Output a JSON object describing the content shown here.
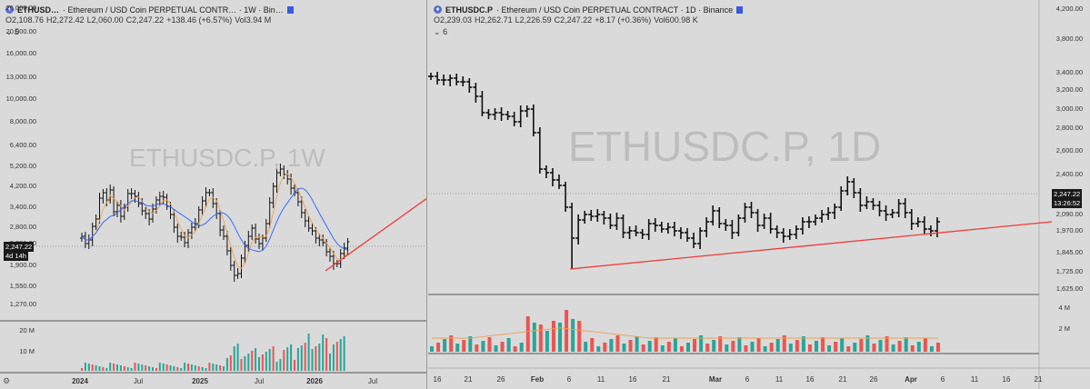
{
  "left": {
    "symbol": "ETHUSD…",
    "title": "· Ethereum / USD Coin PERPETUAL CONTR… · 1W · Bin…",
    "ohlc": {
      "o": "O2,108.76",
      "h": "H2,272.42",
      "l": "L2,060.00",
      "c": "C2,247.22",
      "chg": "+138.46 (+6.57%)",
      "vol": "Vol3.94 M"
    },
    "indicator_count": "5",
    "watermark": "ETHUSDC.P, 1W",
    "price_ticks": [
      "26,000.00",
      "20,000.00",
      "16,000.00",
      "13,000.00",
      "10,000.00",
      "8,000.00",
      "6,400.00",
      "5,200.00",
      "4,200.00",
      "3,400.00",
      "2,800.00",
      "2,350.00",
      "1,900.00",
      "1,550.00",
      "1,270.00"
    ],
    "price_tag": "2,247.22",
    "countdown_tag": "4d 14h",
    "volume_ticks": [
      "20 M",
      "10 M"
    ],
    "time_ticks": [
      {
        "label": "2024",
        "bold": true
      },
      {
        "label": "Jul",
        "bold": false
      },
      {
        "label": "2025",
        "bold": true
      },
      {
        "label": "Jul",
        "bold": false
      },
      {
        "label": "2026",
        "bold": true
      },
      {
        "label": "Jul",
        "bold": false
      }
    ]
  },
  "right": {
    "symbol": "ETHUSDC.P",
    "title": "· Ethereum / USD Coin PERPETUAL CONTRACT · 1D · Binance",
    "ohlc": {
      "o": "O2,239.03",
      "h": "H2,262.71",
      "l": "L2,226.59",
      "c": "C2,247.22",
      "chg": "+8.17 (+0.36%)",
      "vol": "Vol600.98 K"
    },
    "indicator_count": "6",
    "watermark": "ETHUSDC.P, 1D",
    "price_ticks": [
      "4,200.00",
      "3,800.00",
      "3,400.00",
      "3,200.00",
      "3,000.00",
      "2,800.00",
      "2,600.00",
      "2,400.00",
      "2,090.00",
      "1,970.00",
      "1,845.00",
      "1,725.00",
      "1,625.00"
    ],
    "price_tag": "2,247.22",
    "countdown_tag": "13:26:52",
    "volume_ticks": [
      "4 M",
      "2 M"
    ],
    "time_ticks": [
      {
        "label": "16",
        "bold": false
      },
      {
        "label": "21",
        "bold": false
      },
      {
        "label": "26",
        "bold": false
      },
      {
        "label": "Feb",
        "bold": true
      },
      {
        "label": "6",
        "bold": false
      },
      {
        "label": "11",
        "bold": false
      },
      {
        "label": "16",
        "bold": false
      },
      {
        "label": "21",
        "bold": false
      },
      {
        "label": "Mar",
        "bold": true
      },
      {
        "label": "6",
        "bold": false
      },
      {
        "label": "11",
        "bold": false
      },
      {
        "label": "16",
        "bold": false
      },
      {
        "label": "21",
        "bold": false
      },
      {
        "label": "26",
        "bold": false
      },
      {
        "label": "Apr",
        "bold": true
      },
      {
        "label": "6",
        "bold": false
      },
      {
        "label": "11",
        "bold": false
      },
      {
        "label": "16",
        "bold": false
      },
      {
        "label": "21",
        "bold": false
      }
    ]
  },
  "colors": {
    "up": "#26a69a",
    "down": "#ef5350",
    "trend": "#ef3b3b",
    "ma_blue": "#2962ff",
    "ma_orange": "#f0a050"
  }
}
